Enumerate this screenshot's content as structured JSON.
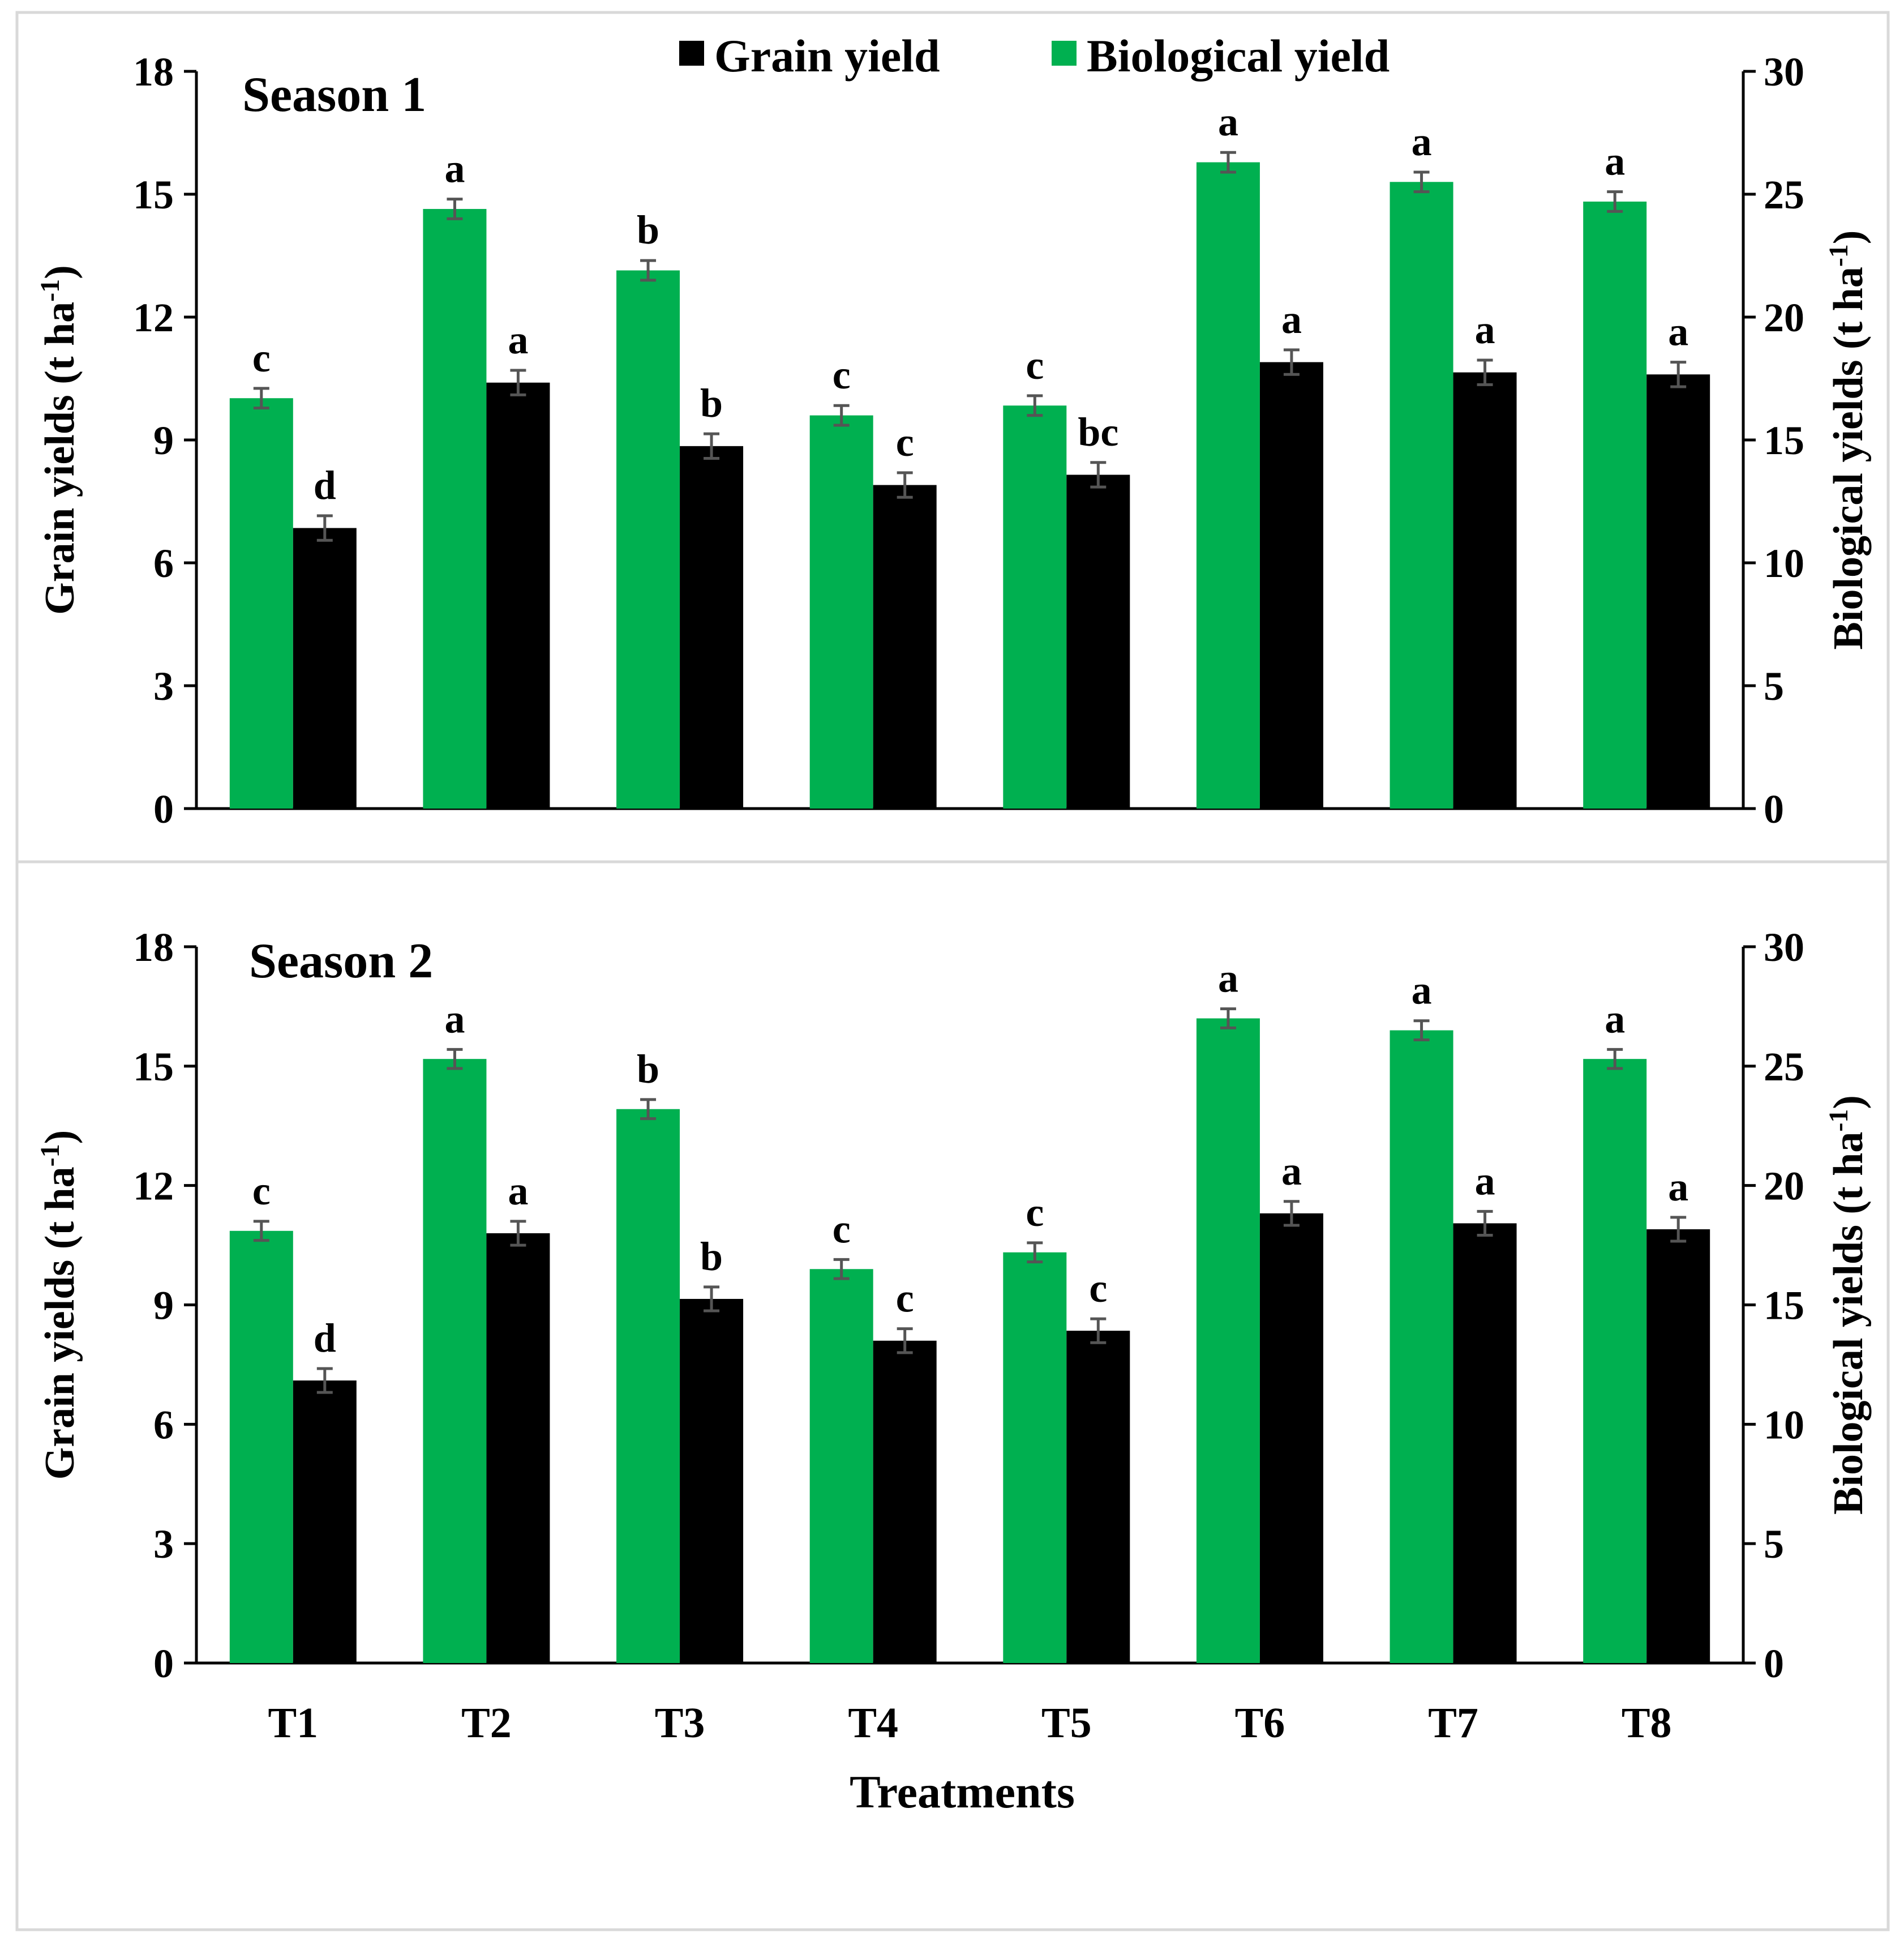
{
  "legend": {
    "grain_label": "Grain yield",
    "bio_label": "Biological yield"
  },
  "colors": {
    "grain": "#000000",
    "biological": "#00b050",
    "error_bar": "#555555",
    "panel_border": "#d9d9d9"
  },
  "x_title": "Treatments",
  "chart_data": [
    {
      "type": "bar",
      "title": "Season 1",
      "categories": [
        "T1",
        "T2",
        "T3",
        "T4",
        "T5",
        "T6",
        "T7",
        "T8"
      ],
      "ylabel_left": "Grain yields (t ha",
      "ylabel_right": "Biological yields (t ha",
      "ylabel_sup": "-1",
      "ylabel_close": ")",
      "ylim_left": [
        0,
        18
      ],
      "yticks_left": [
        0,
        3,
        6,
        9,
        12,
        15,
        18
      ],
      "ylim_right": [
        0,
        30
      ],
      "yticks_right": [
        0,
        5,
        10,
        15,
        20,
        25,
        30
      ],
      "series": [
        {
          "name": "Biological yield",
          "axis": "right",
          "values": [
            16.7,
            24.4,
            21.9,
            16.0,
            16.4,
            26.3,
            25.5,
            24.7
          ],
          "errors": [
            0.4,
            0.4,
            0.4,
            0.4,
            0.4,
            0.4,
            0.4,
            0.4
          ],
          "labels": [
            "c",
            "a",
            "b",
            "c",
            "c",
            "a",
            "a",
            "a"
          ]
        },
        {
          "name": "Grain yield",
          "axis": "left",
          "values": [
            6.85,
            10.4,
            8.85,
            7.9,
            8.15,
            10.9,
            10.65,
            10.6
          ],
          "errors": [
            0.3,
            0.3,
            0.3,
            0.3,
            0.3,
            0.3,
            0.3,
            0.3
          ],
          "labels": [
            "d",
            "a",
            "b",
            "c",
            "bc",
            "a",
            "a",
            "a"
          ]
        }
      ]
    },
    {
      "type": "bar",
      "title": "Season 2",
      "categories": [
        "T1",
        "T2",
        "T3",
        "T4",
        "T5",
        "T6",
        "T7",
        "T8"
      ],
      "ylabel_left": "Grain yields (t ha",
      "ylabel_right": "Biological yields (t ha",
      "ylabel_sup": "-1",
      "ylabel_close": ")",
      "ylim_left": [
        0,
        18
      ],
      "yticks_left": [
        0,
        3,
        6,
        9,
        12,
        15,
        18
      ],
      "ylim_right": [
        0,
        30
      ],
      "yticks_right": [
        0,
        5,
        10,
        15,
        20,
        25,
        30
      ],
      "series": [
        {
          "name": "Biological yield",
          "axis": "right",
          "values": [
            18.1,
            25.3,
            23.2,
            16.5,
            17.2,
            27.0,
            26.5,
            25.3
          ],
          "errors": [
            0.4,
            0.4,
            0.4,
            0.4,
            0.4,
            0.4,
            0.4,
            0.4
          ],
          "labels": [
            "c",
            "a",
            "b",
            "c",
            "c",
            "a",
            "a",
            "a"
          ]
        },
        {
          "name": "Grain yield",
          "axis": "left",
          "values": [
            7.1,
            10.8,
            9.15,
            8.1,
            8.35,
            11.3,
            11.05,
            10.9
          ],
          "errors": [
            0.3,
            0.3,
            0.3,
            0.3,
            0.3,
            0.3,
            0.3,
            0.3
          ],
          "labels": [
            "d",
            "a",
            "b",
            "c",
            "c",
            "a",
            "a",
            "a"
          ]
        }
      ]
    }
  ]
}
